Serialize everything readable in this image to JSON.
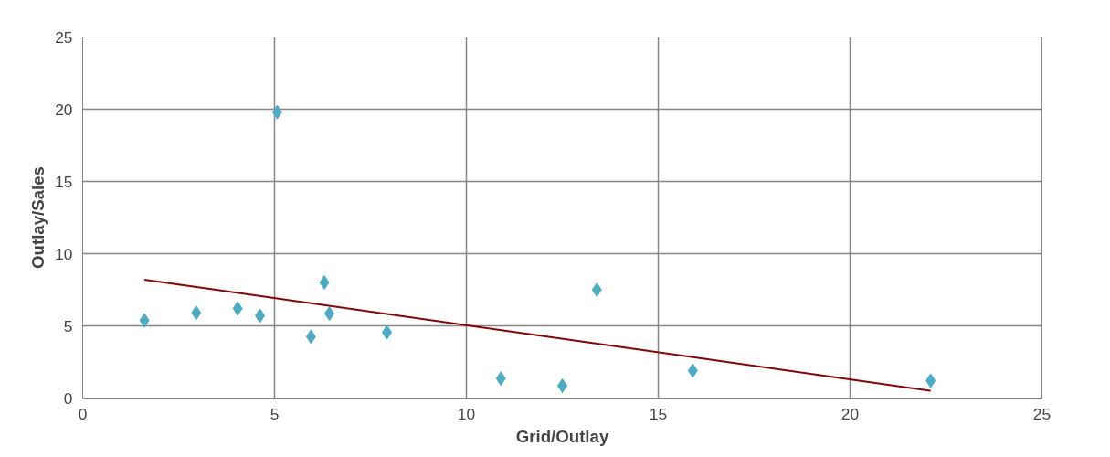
{
  "chart_data": {
    "type": "scatter",
    "xlabel": "Grid/Outlay",
    "ylabel": "Outlay/Sales",
    "xlim": [
      0,
      25
    ],
    "ylim": [
      0,
      25
    ],
    "xticks": [
      0,
      5,
      10,
      15,
      20,
      25
    ],
    "yticks": [
      0,
      5,
      10,
      15,
      20,
      25
    ],
    "grid": true,
    "series": [
      {
        "marker": "diamond",
        "color": "#4bacc6",
        "x": [
          1.61,
          2.96,
          4.04,
          4.62,
          5.07,
          5.95,
          6.3,
          6.43,
          7.93,
          10.9,
          12.5,
          13.4,
          15.9,
          22.1
        ],
        "values": [
          5.38,
          5.9,
          6.2,
          5.7,
          19.8,
          4.25,
          8.0,
          5.85,
          4.55,
          1.35,
          0.85,
          7.5,
          1.9,
          1.2
        ]
      },
      {
        "type": "line",
        "marker": "none",
        "color": "#8b0000",
        "x": [
          1.61,
          22.1
        ],
        "values": [
          8.2,
          0.5
        ]
      }
    ]
  }
}
